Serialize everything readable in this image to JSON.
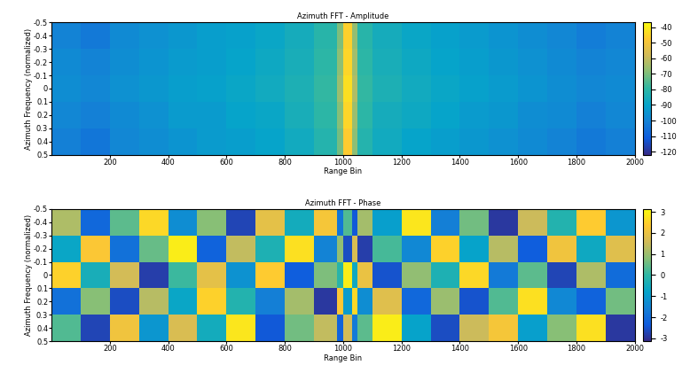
{
  "chart_data": [
    {
      "type": "heatmap",
      "title": "Azimuth FFT - Amplitude",
      "x_label": "Range Bin",
      "y_label": "Azimuth Frequency (normalized)",
      "xlim": [
        1,
        2000
      ],
      "xticks": [
        200,
        400,
        600,
        800,
        1000,
        1200,
        1400,
        1600,
        1800,
        2000
      ],
      "ylim": [
        0.5,
        -0.5
      ],
      "yticks": [
        -0.5,
        -0.4,
        -0.3,
        -0.2,
        -0.1,
        0,
        0.1,
        0.2,
        0.3,
        0.4,
        0.5
      ],
      "x_edges": [
        1,
        100,
        200,
        300,
        400,
        500,
        600,
        700,
        800,
        900,
        980,
        1000,
        1030,
        1050,
        1100,
        1200,
        1300,
        1400,
        1500,
        1600,
        1700,
        1800,
        1900,
        2000
      ],
      "y_edges": [
        -0.5,
        -0.3,
        -0.1,
        0.1,
        0.3,
        0.5
      ],
      "cells": [
        [
          -100,
          -103,
          -98,
          -96,
          -94,
          -92,
          -91,
          -89,
          -86,
          -81,
          -70,
          -46,
          -67,
          -81,
          -86,
          -89,
          -91,
          -93,
          -95,
          -97,
          -99,
          -102,
          -100
        ],
        [
          -98,
          -100,
          -97,
          -95,
          -93,
          -92,
          -90,
          -88,
          -85,
          -80,
          -68,
          -45,
          -65,
          -80,
          -85,
          -88,
          -90,
          -92,
          -94,
          -96,
          -98,
          -100,
          -99
        ],
        [
          -97,
          -99,
          -96,
          -94,
          -92,
          -91,
          -89,
          -87,
          -84,
          -79,
          -66,
          -43,
          -63,
          -79,
          -84,
          -87,
          -89,
          -91,
          -93,
          -95,
          -97,
          -99,
          -98
        ],
        [
          -99,
          -101,
          -98,
          -96,
          -93,
          -93,
          -90,
          -89,
          -85,
          -80,
          -69,
          -45,
          -66,
          -80,
          -86,
          -88,
          -90,
          -93,
          -94,
          -97,
          -98,
          -101,
          -99
        ],
        [
          -101,
          -104,
          -99,
          -97,
          -95,
          -93,
          -92,
          -90,
          -87,
          -82,
          -71,
          -47,
          -68,
          -82,
          -87,
          -90,
          -92,
          -94,
          -96,
          -98,
          -100,
          -103,
          -101
        ]
      ],
      "colorbar_range": [
        -122,
        -37
      ],
      "colorbar_ticks": [
        -40,
        -50,
        -60,
        -70,
        -80,
        -90,
        -100,
        -110,
        -120
      ]
    },
    {
      "type": "heatmap",
      "title": "Azimuth FFT - Phase",
      "x_label": "Range Bin",
      "y_label": "Azimuth Frequency (normalized)",
      "xlim": [
        1,
        2000
      ],
      "xticks": [
        200,
        400,
        600,
        800,
        1000,
        1200,
        1400,
        1600,
        1800,
        2000
      ],
      "ylim": [
        0.5,
        -0.5
      ],
      "yticks": [
        -0.5,
        -0.4,
        -0.3,
        -0.2,
        -0.1,
        0,
        0.1,
        0.2,
        0.3,
        0.4,
        0.5
      ],
      "x_edges": [
        1,
        100,
        200,
        300,
        400,
        500,
        600,
        700,
        800,
        900,
        980,
        1000,
        1030,
        1050,
        1100,
        1200,
        1300,
        1400,
        1500,
        1600,
        1700,
        1800,
        1900,
        2000
      ],
      "y_edges": [
        -0.5,
        -0.3,
        -0.1,
        0.1,
        0.3,
        0.5
      ],
      "cells": [
        [
          1.2,
          -2.1,
          0.4,
          2.6,
          -1.3,
          0.8,
          -2.7,
          1.9,
          -0.5,
          2.2,
          -1.8,
          0.3,
          -2.4,
          1.1,
          -0.9,
          2.8,
          -1.6,
          0.6,
          -2.9,
          1.5,
          -0.2,
          2.4,
          -1.1
        ],
        [
          -0.7,
          2.3,
          -1.9,
          0.5,
          2.9,
          -2.2,
          1.4,
          -0.3,
          2.7,
          -1.5,
          0.9,
          -2.6,
          1.7,
          -2.8,
          0.2,
          -1.4,
          2.5,
          -0.8,
          1.3,
          -2.3,
          2.1,
          -0.6,
          1.8
        ],
        [
          2.5,
          -0.4,
          1.6,
          -2.8,
          0.1,
          1.9,
          -1.2,
          2.4,
          -2.3,
          0.7,
          -0.1,
          2.9,
          -0.6,
          2.0,
          -2.5,
          0.9,
          -0.3,
          2.6,
          -1.7,
          0.4,
          -2.7,
          1.2,
          -2.0
        ],
        [
          -1.9,
          0.8,
          -2.6,
          1.3,
          -0.7,
          2.5,
          -0.2,
          -1.6,
          1.1,
          -2.9,
          2.3,
          -1.0,
          2.6,
          -1.3,
          1.8,
          -2.1,
          1.0,
          -2.5,
          0.3,
          2.7,
          -1.4,
          -2.2,
          0.6
        ],
        [
          0.3,
          -2.7,
          2.1,
          -1.1,
          1.7,
          -0.5,
          2.8,
          -2.4,
          0.6,
          1.4,
          -2.2,
          1.6,
          -1.7,
          0.4,
          2.9,
          -0.8,
          -2.6,
          1.5,
          2.2,
          -0.9,
          0.8,
          2.7,
          -2.9
        ]
      ],
      "colorbar_range": [
        -3.14,
        3.14
      ],
      "colorbar_ticks": [
        -3,
        -2,
        -1,
        0,
        1,
        2,
        3
      ]
    }
  ]
}
